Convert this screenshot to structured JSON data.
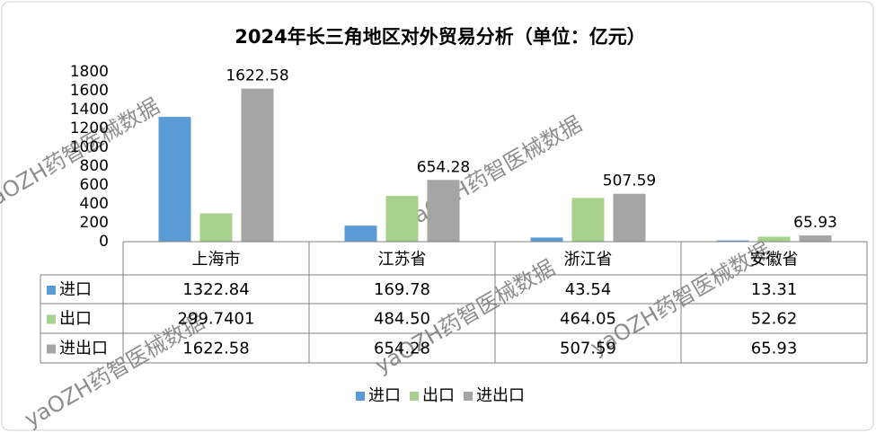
{
  "chart_data": {
    "type": "bar",
    "title": "2024年长三角地区对外贸易分析（单位：亿元）",
    "categories": [
      "上海市",
      "江苏省",
      "浙江省",
      "安徽省"
    ],
    "series": [
      {
        "name": "进口",
        "color": "#5b9bd5",
        "values": [
          1322.84,
          169.78,
          43.54,
          13.31
        ],
        "value_labels": [
          "1322.84",
          "169.78",
          "43.54",
          "13.31"
        ],
        "show_data_labels": false
      },
      {
        "name": "出口",
        "color": "#a9d18e",
        "values": [
          299.7401,
          484.5,
          464.05,
          52.62
        ],
        "value_labels": [
          "299.7401",
          "484.50",
          "464.05",
          "52.62"
        ],
        "show_data_labels": false
      },
      {
        "name": "进出口",
        "color": "#a5a5a5",
        "values": [
          1622.58,
          654.28,
          507.59,
          65.93
        ],
        "value_labels": [
          "1622.58",
          "654.28",
          "507.59",
          "65.93"
        ],
        "show_data_labels": true
      }
    ],
    "ylim": [
      0,
      1800
    ],
    "yticks": [
      0,
      200,
      400,
      600,
      800,
      1000,
      1200,
      1400,
      1600,
      1800
    ],
    "grid": false,
    "data_table": true,
    "legend": "bottom",
    "watermark": "yaOZH药智医械数据"
  }
}
